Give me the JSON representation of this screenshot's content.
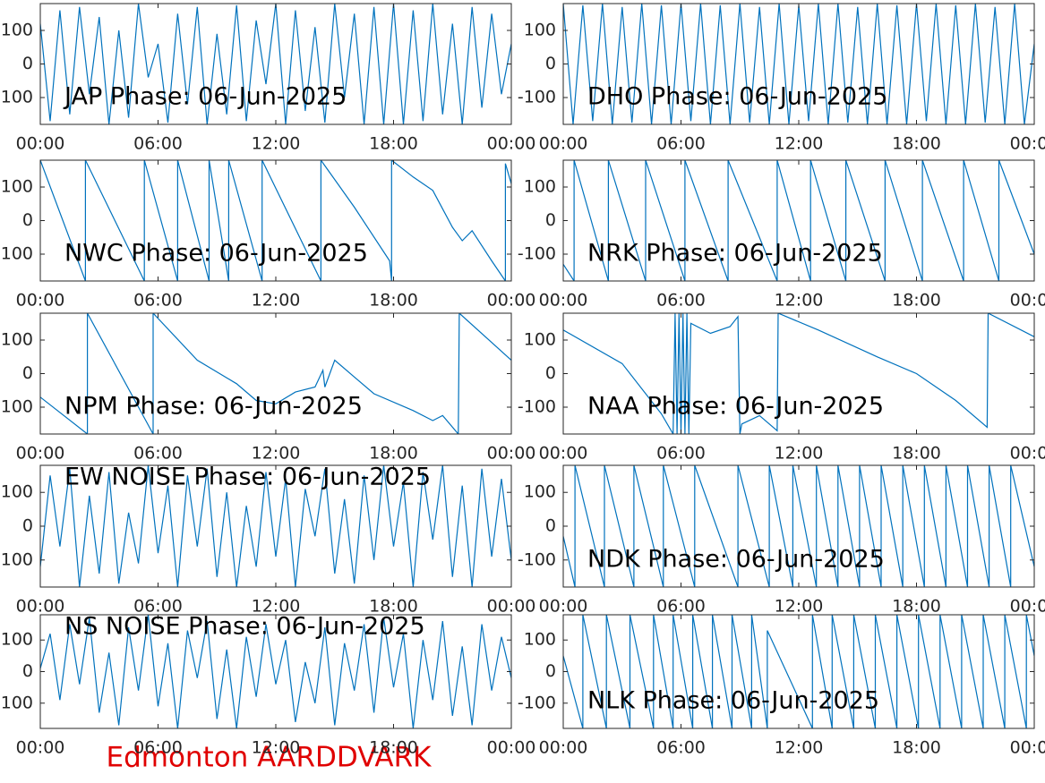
{
  "caption": "Edmonton AARDDVARK",
  "chart_data": [
    {
      "type": "line",
      "title": "JAP Phase: 06-Jun-2025",
      "color": "#0072bd",
      "xlim": [
        0,
        24
      ],
      "ylim": [
        -180,
        180
      ],
      "xticks": [
        {
          "value": 0,
          "label": "00:00"
        },
        {
          "value": 6,
          "label": "06:00"
        },
        {
          "value": 12,
          "label": "12:00"
        },
        {
          "value": 18,
          "label": "18:00"
        },
        {
          "value": 24,
          "label": "00:00"
        }
      ],
      "yticks": [
        -100,
        0,
        100
      ],
      "x": [
        0,
        0.5,
        1,
        1.5,
        2,
        2.5,
        3,
        3.5,
        4,
        4.5,
        5,
        5.5,
        6,
        6.5,
        7,
        7.5,
        8,
        8.5,
        9,
        9.5,
        10,
        10.5,
        11,
        11.5,
        12,
        12.5,
        13,
        13.5,
        14,
        14.5,
        15,
        15.5,
        16,
        16.5,
        17,
        17.5,
        18,
        18.5,
        19,
        19.5,
        20,
        20.5,
        21,
        21.5,
        22,
        22.5,
        23,
        23.5,
        24
      ],
      "values": [
        120,
        -170,
        160,
        -150,
        170,
        -90,
        140,
        -180,
        100,
        -160,
        180,
        -40,
        60,
        -175,
        150,
        -120,
        170,
        -180,
        90,
        -150,
        175,
        -170,
        130,
        -60,
        180,
        -180,
        160,
        -140,
        110,
        -175,
        180,
        -100,
        150,
        -180,
        170,
        -180,
        180,
        -180,
        160,
        -170,
        180,
        -150,
        120,
        -180,
        170,
        -130,
        150,
        -90,
        60
      ]
    },
    {
      "type": "line",
      "title": "DHO Phase: 06-Jun-2025",
      "color": "#0072bd",
      "xlim": [
        0,
        24
      ],
      "ylim": [
        -180,
        180
      ],
      "xticks": [
        {
          "value": 0,
          "label": "00:00"
        },
        {
          "value": 6,
          "label": "06:00"
        },
        {
          "value": 12,
          "label": "12:00"
        },
        {
          "value": 18,
          "label": "18:00"
        },
        {
          "value": 24,
          "label": "00:00"
        }
      ],
      "yticks": [
        -100,
        0,
        100
      ],
      "x": [
        0,
        0.5,
        1,
        1.5,
        2,
        2.5,
        3,
        3.5,
        4,
        4.5,
        5,
        5.5,
        6,
        6.5,
        7,
        7.5,
        8,
        8.5,
        9,
        9.5,
        10,
        10.5,
        11,
        11.5,
        12,
        12.5,
        13,
        13.5,
        14,
        14.5,
        15,
        15.5,
        16,
        16.5,
        17,
        17.5,
        18,
        18.5,
        19,
        19.5,
        20,
        20.5,
        21,
        21.5,
        22,
        22.5,
        23,
        23.5,
        24
      ],
      "values": [
        180,
        -180,
        175,
        -170,
        180,
        -180,
        170,
        -175,
        180,
        -180,
        175,
        -180,
        180,
        -170,
        180,
        -180,
        175,
        -180,
        180,
        -175,
        170,
        -180,
        180,
        -180,
        175,
        -170,
        180,
        -180,
        180,
        -175,
        170,
        -180,
        180,
        -180,
        175,
        -180,
        180,
        -170,
        180,
        -180,
        175,
        -180,
        180,
        -175,
        170,
        -180,
        180,
        -180,
        60
      ]
    },
    {
      "type": "line",
      "title": "NWC Phase: 06-Jun-2025",
      "color": "#0072bd",
      "xlim": [
        0,
        24
      ],
      "ylim": [
        -180,
        180
      ],
      "xticks": [
        {
          "value": 0,
          "label": "00:00"
        },
        {
          "value": 6,
          "label": "06:00"
        },
        {
          "value": 12,
          "label": "12:00"
        },
        {
          "value": 18,
          "label": "18:00"
        },
        {
          "value": 24,
          "label": "00:00"
        }
      ],
      "yticks": [
        -100,
        0,
        100
      ],
      "x": [
        0,
        2.3,
        2.3,
        5.3,
        5.3,
        7.0,
        7.0,
        8.6,
        8.6,
        9.6,
        9.6,
        11.3,
        11.3,
        14.3,
        14.3,
        16,
        17.8,
        17.9,
        17.9,
        19,
        20,
        21,
        21.5,
        22,
        23,
        23.7,
        23.7,
        24
      ],
      "values": [
        180,
        -180,
        180,
        -180,
        180,
        -180,
        180,
        -180,
        180,
        -180,
        180,
        -180,
        180,
        -180,
        180,
        40,
        -120,
        -180,
        180,
        130,
        90,
        -20,
        -60,
        -30,
        -120,
        -180,
        170,
        110
      ]
    },
    {
      "type": "line",
      "title": "NRK Phase: 06-Jun-2025",
      "color": "#0072bd",
      "xlim": [
        0,
        24
      ],
      "ylim": [
        -180,
        180
      ],
      "xticks": [
        {
          "value": 0,
          "label": "00:00"
        },
        {
          "value": 6,
          "label": "06:00"
        },
        {
          "value": 12,
          "label": "12:00"
        },
        {
          "value": 18,
          "label": "18:00"
        },
        {
          "value": 24,
          "label": "00:00"
        }
      ],
      "yticks": [
        -100,
        0,
        100
      ],
      "x": [
        0,
        0.55,
        0.55,
        2.3,
        2.3,
        4.2,
        4.2,
        6.2,
        6.2,
        8.4,
        8.4,
        10.9,
        10.9,
        12.6,
        12.6,
        14.4,
        14.4,
        16.4,
        16.4,
        18.3,
        18.3,
        20.4,
        20.4,
        22.2,
        22.2,
        24
      ],
      "values": [
        -130,
        -180,
        180,
        -180,
        180,
        -180,
        180,
        -180,
        180,
        -180,
        180,
        -180,
        180,
        -180,
        180,
        -180,
        180,
        -180,
        180,
        -180,
        180,
        -180,
        180,
        -180,
        180,
        -100
      ]
    },
    {
      "type": "line",
      "title": "NPM Phase: 06-Jun-2025",
      "color": "#0072bd",
      "xlim": [
        0,
        24
      ],
      "ylim": [
        -180,
        180
      ],
      "xticks": [
        {
          "value": 0,
          "label": "00:00"
        },
        {
          "value": 6,
          "label": "06:00"
        },
        {
          "value": 12,
          "label": "12:00"
        },
        {
          "value": 18,
          "label": "18:00"
        },
        {
          "value": 24,
          "label": "00:00"
        }
      ],
      "yticks": [
        -100,
        0,
        100
      ],
      "x": [
        0,
        2.4,
        2.4,
        5.75,
        5.75,
        8,
        10,
        11,
        12,
        13,
        14,
        14.4,
        14.5,
        15,
        16,
        17,
        19,
        20,
        20.5,
        21.3,
        21.35,
        24
      ],
      "values": [
        -70,
        -180,
        180,
        -180,
        180,
        40,
        -30,
        -80,
        -90,
        -55,
        -40,
        10,
        -40,
        40,
        -10,
        -60,
        -110,
        -140,
        -125,
        -180,
        180,
        40
      ]
    },
    {
      "type": "line",
      "title": "NAA Phase: 06-Jun-2025",
      "color": "#0072bd",
      "xlim": [
        0,
        24
      ],
      "ylim": [
        -180,
        180
      ],
      "xticks": [
        {
          "value": 0,
          "label": "00:00"
        },
        {
          "value": 6,
          "label": "06:00"
        },
        {
          "value": 12,
          "label": "12:00"
        },
        {
          "value": 18,
          "label": "18:00"
        },
        {
          "value": 24,
          "label": "00:00"
        }
      ],
      "yticks": [
        -100,
        0,
        100
      ],
      "x": [
        0,
        3,
        5,
        5.6,
        5.7,
        5.8,
        5.9,
        6.0,
        6.1,
        6.2,
        6.3,
        6.4,
        6.5,
        7.5,
        8.5,
        8.9,
        9.0,
        9.1,
        10,
        10.9,
        10.95,
        13,
        16,
        18,
        20,
        21.6,
        21.65,
        24
      ],
      "values": [
        130,
        30,
        -120,
        -180,
        180,
        -180,
        180,
        -180,
        180,
        -180,
        180,
        -180,
        150,
        120,
        140,
        170,
        -180,
        -150,
        -125,
        -170,
        180,
        130,
        50,
        0,
        -80,
        -160,
        180,
        110
      ]
    },
    {
      "type": "line",
      "title": "EW NOISE Phase: 06-Jun-2025",
      "color": "#0072bd",
      "xlim": [
        0,
        24
      ],
      "ylim": [
        -180,
        180
      ],
      "xticks": [
        {
          "value": 0,
          "label": "00:00"
        },
        {
          "value": 6,
          "label": "06:00"
        },
        {
          "value": 12,
          "label": "12:00"
        },
        {
          "value": 18,
          "label": "18:00"
        },
        {
          "value": 24,
          "label": "00:00"
        }
      ],
      "yticks": [
        -100,
        0,
        100
      ],
      "x": [
        0,
        0.5,
        1,
        1.5,
        2,
        2.5,
        3,
        3.5,
        4,
        4.5,
        5,
        5.5,
        6,
        6.5,
        7,
        7.5,
        8,
        8.5,
        9,
        9.5,
        10,
        10.5,
        11,
        11.5,
        12,
        12.5,
        13,
        13.5,
        14,
        14.5,
        15,
        15.5,
        16,
        16.5,
        17,
        17.5,
        18,
        18.5,
        19,
        19.5,
        20,
        20.5,
        21,
        21.5,
        22,
        22.5,
        23,
        23.5,
        24
      ],
      "values": [
        -120,
        150,
        -60,
        170,
        -180,
        90,
        -140,
        160,
        -170,
        40,
        -110,
        180,
        -80,
        120,
        -180,
        150,
        -60,
        170,
        -150,
        100,
        -180,
        60,
        -120,
        160,
        -90,
        140,
        -180,
        110,
        -30,
        170,
        -140,
        80,
        -170,
        150,
        -100,
        180,
        -60,
        130,
        -180,
        160,
        -40,
        180,
        -150,
        120,
        -180,
        170,
        -90,
        140,
        -100
      ]
    },
    {
      "type": "line",
      "title": "NDK Phase: 06-Jun-2025",
      "color": "#0072bd",
      "xlim": [
        0,
        24
      ],
      "ylim": [
        -180,
        180
      ],
      "xticks": [
        {
          "value": 0,
          "label": "00:00"
        },
        {
          "value": 6,
          "label": "06:00"
        },
        {
          "value": 12,
          "label": "12:00"
        },
        {
          "value": 18,
          "label": "18:00"
        },
        {
          "value": 24,
          "label": "00:00"
        }
      ],
      "yticks": [
        -100,
        0,
        100
      ],
      "x": [
        0,
        0.6,
        0.6,
        2.1,
        2.1,
        3.6,
        3.6,
        5.1,
        5.1,
        6.7,
        6.7,
        8.9,
        8.9,
        10.5,
        10.5,
        11.7,
        11.7,
        12.9,
        12.9,
        14.0,
        14.0,
        15.1,
        15.1,
        16.2,
        16.2,
        17.3,
        17.3,
        18.4,
        18.4,
        19.5,
        19.5,
        20.6,
        20.6,
        21.7,
        21.7,
        22.8,
        22.8,
        24
      ],
      "values": [
        -30,
        -180,
        180,
        -180,
        180,
        -180,
        180,
        -180,
        180,
        -180,
        180,
        -180,
        180,
        -180,
        180,
        -180,
        180,
        -180,
        180,
        -180,
        180,
        -180,
        180,
        -180,
        180,
        -180,
        180,
        -180,
        180,
        -180,
        180,
        -180,
        180,
        -180,
        180,
        -180,
        180,
        -120
      ]
    },
    {
      "type": "line",
      "title": "NS NOISE Phase: 06-Jun-2025",
      "color": "#0072bd",
      "xlim": [
        0,
        24
      ],
      "ylim": [
        -180,
        180
      ],
      "xticks": [
        {
          "value": 0,
          "label": "00:00"
        },
        {
          "value": 6,
          "label": "06:00"
        },
        {
          "value": 12,
          "label": "12:00"
        },
        {
          "value": 18,
          "label": "18:00"
        },
        {
          "value": 24,
          "label": "00:00"
        }
      ],
      "yticks": [
        -100,
        0,
        100
      ],
      "x": [
        0,
        0.5,
        1,
        1.5,
        2,
        2.5,
        3,
        3.5,
        4,
        4.5,
        5,
        5.5,
        6,
        6.5,
        7,
        7.5,
        8,
        8.5,
        9,
        9.5,
        10,
        10.5,
        11,
        11.5,
        12,
        12.5,
        13,
        13.5,
        14,
        14.5,
        15,
        15.5,
        16,
        16.5,
        17,
        17.5,
        18,
        18.5,
        19,
        19.5,
        20,
        20.5,
        21,
        21.5,
        22,
        22.5,
        23,
        23.5,
        24
      ],
      "values": [
        10,
        120,
        -90,
        150,
        -40,
        170,
        -130,
        60,
        -170,
        140,
        -60,
        180,
        -110,
        90,
        -180,
        130,
        -20,
        160,
        -150,
        70,
        -180,
        110,
        -80,
        150,
        -40,
        100,
        -160,
        30,
        -100,
        140,
        -170,
        90,
        -60,
        150,
        -130,
        170,
        -50,
        120,
        -180,
        100,
        -90,
        160,
        -140,
        80,
        -170,
        150,
        -60,
        110,
        -20
      ]
    },
    {
      "type": "line",
      "title": "NLK Phase: 06-Jun-2025",
      "color": "#0072bd",
      "xlim": [
        0,
        24
      ],
      "ylim": [
        -180,
        180
      ],
      "xticks": [
        {
          "value": 0,
          "label": "00:00"
        },
        {
          "value": 6,
          "label": "06:00"
        },
        {
          "value": 12,
          "label": "12:00"
        },
        {
          "value": 18,
          "label": "18:00"
        },
        {
          "value": 24,
          "label": "00:00"
        }
      ],
      "yticks": [
        -100,
        0,
        100
      ],
      "x": [
        0,
        1.0,
        1.0,
        2.2,
        2.2,
        3.4,
        3.4,
        4.6,
        4.6,
        5.6,
        5.6,
        6.6,
        6.6,
        7.6,
        7.6,
        8.6,
        8.6,
        9.6,
        9.6,
        10.4,
        10.4,
        12.7,
        12.7,
        13.7,
        13.7,
        14.8,
        14.8,
        15.9,
        15.9,
        17.0,
        17.0,
        18.1,
        18.1,
        19.2,
        19.2,
        20.3,
        20.3,
        21.4,
        21.4,
        22.5,
        22.5,
        23.6,
        23.6,
        24
      ],
      "values": [
        50,
        -180,
        180,
        -180,
        180,
        -180,
        180,
        -180,
        180,
        -180,
        180,
        -180,
        180,
        -180,
        180,
        -180,
        180,
        -180,
        180,
        -180,
        130,
        -180,
        180,
        -180,
        180,
        -180,
        180,
        -180,
        180,
        -180,
        180,
        -180,
        180,
        -180,
        180,
        -180,
        180,
        -180,
        180,
        -180,
        180,
        -180,
        180,
        50
      ]
    }
  ]
}
